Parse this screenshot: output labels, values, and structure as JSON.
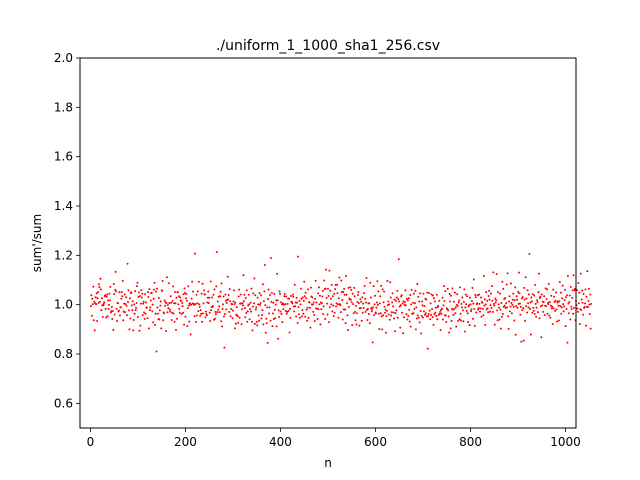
{
  "chart_data": {
    "type": "scatter",
    "title": "./uniform_1_1000_sha1_256.csv",
    "xlabel": "n",
    "ylabel": "sum'/sum",
    "xlim": [
      -22,
      1022
    ],
    "ylim": [
      0.5,
      2.0
    ],
    "xticks": [
      "0",
      "200",
      "400",
      "600",
      "800",
      "1000"
    ],
    "xtick_values": [
      0,
      200,
      400,
      600,
      800,
      1000
    ],
    "yticks": [
      "0.6",
      "0.8",
      "1.0",
      "1.2",
      "1.4",
      "1.6",
      "1.8",
      "2.0"
    ],
    "ytick_values": [
      0.6,
      0.8,
      1.0,
      1.2,
      1.4,
      1.6,
      1.8,
      2.0
    ],
    "grid": false,
    "marker_color": "#ff0000",
    "series": [
      {
        "x_start": 1,
        "x_step": 1,
        "values": [
          0.994,
          1.038,
          0.955,
          1.024,
          1.002,
          1.073,
          0.937,
          1.012,
          0.896,
          1.006,
          1.03,
          1.002,
          1.046,
          0.934,
          1.026,
          1.051,
          1.007,
          1.083,
          1.071,
          1.012,
          1.105,
          1.062,
          0.978,
          1.026,
          0.998,
          0.95,
          0.997,
          1.003,
          1.01,
          1.034,
          1.038,
          0.983,
          0.948,
          1.032,
          1.041,
          0.953,
          1.017,
          0.983,
          0.999,
          1.045,
          1.018,
          1.072,
          0.968,
          0.974,
          0.991,
          0.942,
          0.974,
          0.898,
          1.084,
          1.043,
          0.96,
          1.06,
          1.133,
          1.054,
          0.983,
          0.934,
          1.007,
          1.006,
          0.973,
          0.976,
          1.051,
          0.956,
          0.99,
          0.989,
          1.024,
          1.051,
          1.034,
          1.097,
          0.937,
          0.972,
          1.004,
          1.041,
          0.969,
          1.002,
          1.03,
          0.995,
          0.957,
          1.166,
          1.011,
          1.058,
          0.977,
          0.9,
          1.026,
          0.944,
          1.047,
          1.05,
          0.997,
          0.978,
          1.014,
          0.896,
          0.938,
          1.001,
          0.963,
          1.055,
          0.978,
          0.987,
          1.007,
          1.075,
          1.089,
          0.95,
          1.031,
          1.05,
          0.894,
          1.035,
          0.915,
          1.004,
          1.059,
          1.029,
          1.044,
          0.958,
          1.004,
          1.012,
          0.968,
          0.942,
          1.042,
          0.963,
          1.009,
          0.987,
          0.989,
          0.945,
          1.051,
          1.031,
          0.904,
          1.063,
          0.978,
          0.989,
          1.017,
          1.048,
          1.047,
          0.973,
          1.0,
          0.928,
          1.024,
          1.061,
          1.089,
          0.918,
          0.963,
          1.053,
          0.81,
          1.065,
          0.989,
          0.963,
          0.942,
          1.027,
          0.94,
          0.977,
          0.996,
          1.013,
          0.904,
          1.058,
          1.056,
          1.096,
          0.937,
          0.968,
          0.965,
          1.017,
          0.995,
          1.01,
          0.893,
          1.006,
          1.111,
          0.969,
          0.998,
          0.986,
          1.087,
          1.007,
          0.98,
          0.972,
          1.034,
          1.008,
          0.938,
          0.967,
          1.015,
          1.074,
          0.964,
          1.005,
          0.931,
          1.051,
          1.006,
          0.898,
          1.028,
          0.943,
          1.051,
          1.05,
          1.001,
          1.034,
          0.983,
          0.967,
          1.029,
          1.016,
          1.016,
          0.962,
          1.007,
          0.994,
          0.967,
          1.042,
          0.919,
          1.066,
          1.048,
          0.951,
          1.026,
          1.043,
          1.016,
          0.913,
          0.986,
          1.074,
          0.996,
          0.932,
          1.006,
          1.002,
          0.879,
          0.999,
          1.024,
          1.093,
          1.005,
          1.053,
          1.003,
          0.999,
          0.953,
          1.207,
          1.002,
          0.93,
          1.04,
          0.956,
          1.006,
          1.054,
          0.974,
          1.093,
          1.001,
          0.991,
          0.955,
          0.978,
          0.963,
          1.045,
          0.931,
          1.085,
          0.964,
          1.005,
          1.058,
          1.042,
          1.041,
          0.949,
          0.972,
          0.962,
          0.957,
          1.009,
          1.028,
          1.053,
          1.007,
          1.028,
          0.967,
          0.934,
          1.094,
          0.978,
          0.99,
          1.029,
          0.992,
          0.994,
          1.04,
          0.939,
          1.062,
          0.943,
          0.971,
          0.961,
          1.074,
          1.213,
          0.97,
          1.013,
          0.98,
          1.032,
          0.993,
          0.97,
          1.034,
          1.053,
          0.933,
          1.086,
          0.912,
          0.983,
          1.001,
          1.033,
          0.952,
          0.826,
          0.962,
          1.041,
          1.016,
          0.981,
          1.007,
          1.02,
          1.113,
          1.021,
          1.039,
          0.971,
          1.063,
          1.014,
          0.953,
          0.982,
          1.003,
          1.001,
          0.945,
          0.976,
          1.013,
          1.058,
          1.002,
          0.904,
          1.009,
          0.923,
          0.959,
          0.99,
          0.956,
          0.953,
          0.926,
          1.033,
          1.061,
          0.947,
          1.004,
          1.041,
          1.005,
          0.921,
          0.982,
          1.006,
          0.997,
          1.12,
          1.014,
          1.04,
          0.986,
          0.949,
          1.027,
          0.966,
          1.058,
          0.931,
          0.973,
          0.997,
          1.04,
          1.001,
          0.941,
          0.982,
          1.008,
          0.972,
          1.065,
          0.931,
          0.896,
          0.992,
          1.046,
          1.006,
          1.106,
          0.922,
          1.038,
          0.98,
          0.989,
          0.931,
          0.916,
          1.028,
          1.001,
          0.956,
          0.935,
          1.047,
          0.999,
          1.007,
          1.038,
          0.944,
          0.958,
          0.978,
          1.083,
          0.92,
          1.014,
          1.054,
          1.161,
          0.998,
          0.886,
          0.943,
          0.925,
          0.989,
          0.845,
          1.023,
          1.061,
          0.964,
          0.989,
          1.039,
          0.935,
          1.189,
          1.011,
          1.048,
          0.913,
          0.964,
          1.008,
          0.942,
          1.043,
          0.979,
          0.945,
          1.0,
          1.017,
          0.912,
          1.125,
          1.018,
          0.862,
          0.977,
          0.95,
          1.054,
          1.044,
          0.972,
          1.01,
          0.962,
          1.001,
          0.929,
          1.005,
          0.982,
          1.0,
          1.034,
          1.043,
          1.002,
          0.975,
          1.033,
          0.963,
          0.971,
          1.003,
          1.024,
          0.975,
          1.025,
          0.887,
          0.983,
          0.947,
          1.035,
          1.012,
          1.01,
          1.005,
          1.041,
          1.032,
          0.992,
          0.973,
          1.081,
          0.994,
          1.009,
          0.952,
          1.028,
          1.008,
          0.926,
          1.195,
          0.99,
          0.961,
          1.015,
          0.947,
          1.001,
          1.065,
          1.024,
          0.953,
          0.978,
          1.029,
          0.963,
          1.016,
          1.093,
          1.034,
          0.951,
          1.049,
          1.026,
          0.98,
          0.935,
          0.988,
          1.062,
          0.946,
          1.011,
          1.009,
          0.987,
          0.907,
          1.069,
          1.033,
          1.001,
          1.029,
          1.0,
          0.971,
          1.009,
          0.958,
          0.934,
          1.024,
          1.097,
          0.985,
          1.009,
          0.984,
          0.942,
          1.046,
          0.981,
          1.07,
          1.001,
          1.036,
          0.92,
          1.009,
          0.982,
          1.006,
          1.033,
          1.056,
          0.962,
          0.993,
          1.098,
          1.063,
          0.942,
          1.065,
          1.142,
          1.027,
          1.004,
          0.96,
          1.064,
          1.035,
          0.929,
          1.138,
          0.99,
          1.057,
          1.024,
          1.001,
          1.08,
          0.973,
          1.034,
          0.996,
          0.954,
          1.044,
          0.967,
          1.063,
          1.08,
          0.993,
          1.005,
          1.081,
          1.047,
          1.001,
          0.947,
          1.026,
          1.11,
          1.002,
          0.998,
          0.97,
          1.098,
          1.052,
          1.019,
          0.94,
          1.051,
          0.981,
          1.064,
          1.04,
          0.98,
          0.925,
          1.116,
          1.04,
          1.006,
          0.957,
          0.897,
          1.068,
          0.991,
          1.025,
          1.021,
          1.07,
          1.02,
          1.06,
          1.01,
          0.917,
          1.044,
          1.002,
          0.965,
          1.068,
          1.034,
          0.971,
          0.937,
          0.995,
          0.92,
          0.965,
          1.011,
          1.039,
          1.051,
          1.006,
          0.915,
          0.986,
          1.022,
          0.986,
          1.012,
          0.935,
          1.03,
          0.967,
          1.004,
          0.987,
          1.047,
          1.076,
          1.024,
          0.971,
          1.009,
          1.108,
          0.979,
          0.938,
          0.983,
          1.005,
          0.962,
          1.005,
          0.925,
          1.089,
          1.029,
          0.986,
          0.973,
          0.981,
          0.847,
          0.989,
          1.075,
          0.958,
          1.001,
          1.036,
          0.968,
          0.964,
          0.988,
          1.009,
          1.095,
          0.999,
          1.054,
          0.963,
          0.901,
          1.005,
          1.034,
          0.965,
          1.076,
          0.952,
          0.9,
          1.062,
          0.957,
          1.01,
          1.053,
          0.991,
          0.967,
          0.98,
          0.886,
          0.953,
          0.975,
          1.096,
          0.998,
          1.013,
          0.96,
          1.001,
          0.939,
          1.091,
          1.029,
          0.956,
          0.969,
          1.009,
          1.046,
          0.993,
          0.968,
          0.944,
          1.021,
          0.892,
          0.966,
          1.016,
          0.977,
          1.029,
          1.056,
          0.947,
          1.022,
          1.184,
          1.013,
          0.992,
          0.907,
          0.998,
          1.033,
          1.038,
          0.967,
          1.005,
          0.884,
          1.014,
          0.949,
          0.999,
          1.01,
          1.058,
          0.997,
          0.961,
          1.024,
          0.94,
          1.017,
          0.954,
          1.026,
          0.979,
          0.932,
          1.039,
          0.911,
          1.001,
          1.06,
          0.963,
          0.963,
          1.008,
          0.965,
          1.045,
          0.983,
          1.006,
          1.056,
          0.9,
          0.989,
          0.944,
          1.084,
          0.956,
          1.032,
          0.947,
          1.013,
          0.928,
          1.046,
          0.974,
          0.883,
          0.954,
          1.013,
          0.997,
          0.948,
          1.045,
          0.973,
          0.994,
          0.959,
          1.024,
          0.965,
          1.021,
          0.953,
          1.049,
          0.822,
          0.953,
          0.962,
          1.047,
          0.976,
          0.941,
          1.005,
          0.958,
          1.041,
          0.982,
          0.95,
          1.037,
          0.918,
          1.026,
          0.961,
          1.013,
          0.967,
          0.988,
          0.954,
          1.04,
          0.941,
          0.99,
          0.995,
          0.958,
          1.016,
          0.963,
          0.971,
          0.897,
          0.979,
          0.963,
          0.983,
          1.028,
          0.94,
          0.997,
          1.075,
          1.015,
          0.957,
          1.055,
          0.956,
          0.93,
          0.985,
          0.982,
          1.064,
          0.977,
          0.952,
          0.887,
          1.043,
          1.013,
          0.904,
          1.036,
          0.934,
          0.983,
          1.066,
          0.98,
          0.958,
          1.012,
          0.983,
          1.049,
          0.965,
          0.989,
          0.911,
          0.999,
          1.042,
          0.995,
          0.935,
          1.009,
          1.017,
          0.941,
          1.07,
          0.963,
          0.936,
          1.003,
          0.989,
          1.029,
          0.977,
          0.933,
          1.011,
          1.062,
          0.891,
          0.989,
          1.041,
          1.002,
          0.975,
          1.034,
          0.965,
          0.929,
          0.993,
          0.997,
          0.917,
          1.028,
          1.001,
          0.974,
          0.981,
          1.015,
          1.068,
          0.943,
          1.004,
          1.102,
          0.983,
          0.914,
          1.039,
          1.03,
          0.968,
          1.002,
          1.006,
          1.038,
          0.98,
          0.986,
          1.041,
          1.003,
          0.972,
          0.985,
          1.029,
          0.951,
          1.011,
          1.008,
          0.983,
          0.957,
          1.116,
          0.996,
          1.022,
          0.918,
          1.001,
          1.051,
          0.981,
          1.016,
          0.985,
          0.969,
          1.035,
          1.056,
          1.02,
          0.972,
          0.998,
          1.045,
          0.987,
          1.075,
          1.016,
          0.971,
          1.131,
          1.003,
          0.996,
          0.919,
          1.025,
          1.009,
          1.018,
          1.124,
          0.977,
          0.937,
          1.051,
          1.001,
          0.988,
          0.94,
          1.045,
          0.98,
          0.903,
          1.007,
          0.951,
          1.093,
          0.962,
          1.064,
          0.991,
          1.023,
          0.996,
          1.027,
          0.987,
          1.006,
          1.082,
          0.989,
          1.127,
          0.953,
          0.902,
          1.013,
          1.034,
          0.973,
          0.992,
          1.086,
          1.007,
          0.965,
          0.999,
          1.02,
          1.045,
          0.991,
          0.936,
          1.018,
          1.07,
          0.878,
          0.994,
          1.034,
          1.02,
          0.987,
          1.052,
          1.003,
          1.13,
          1.047,
          1.004,
          0.959,
          0.991,
          0.85,
          1.025,
          0.978,
          1.031,
          0.986,
          0.854,
          1.068,
          1.021,
          0.935,
          1.111,
          0.994,
          1.025,
          0.968,
          1.058,
          1.006,
          0.989,
          1.041,
          1.206,
          0.983,
          1.009,
          0.879,
          1.029,
          1.013,
          0.967,
          1.042,
          0.987,
          0.975,
          1.037,
          0.962,
          1.08,
          1.003,
          0.951,
          0.988,
          1.018,
          1.01,
          0.97,
          1.051,
          1.126,
          0.945,
          1.027,
          1.032,
          0.993,
          0.868,
          1.041,
          0.997,
          1.012,
          0.971,
          1.011,
          1.034,
          0.958,
          0.995,
          1.066,
          0.994,
          1.023,
          1.062,
          0.963,
          1.008,
          1.002,
          1.084,
          0.956,
          1.011,
          0.947,
          0.996,
          1.036,
          0.985,
          0.992,
          0.921,
          1.061,
          0.985,
          1.032,
          1.011,
          0.975,
          1.016,
          1.049,
          0.981,
          0.932,
          1.009,
          1.014,
          0.996,
          0.936,
          1.013,
          1.092,
          0.994,
          1.049,
          0.963,
          0.989,
          1.026,
          1.077,
          1.002,
          0.973,
          0.993,
          1.019,
          1.06,
          0.913,
          1.03,
          0.982,
          1.038,
          0.846,
          1.116,
          1.004,
          0.965,
          1.011,
          1.037,
          0.94,
          1.072,
          0.992,
          0.983,
          1.027,
          1.058,
          0.963,
          1.119,
          0.987,
          1.059,
          1.064,
          0.937,
          1.015,
          0.998,
          1.059,
          0.984,
          0.971,
          1.088,
          1.006,
          1.049,
          0.921,
          0.981,
          1.126,
          0.979,
          1.021,
          1.057,
          1.008,
          0.959,
          1.043,
          0.987,
          0.991,
          1.005,
          1.062,
          0.915,
          1.032,
          0.991,
          1.136,
          0.99,
          1.015,
          1.064,
          1.0,
          0.962,
          1.041,
          0.903,
          1.003
        ]
      }
    ]
  }
}
